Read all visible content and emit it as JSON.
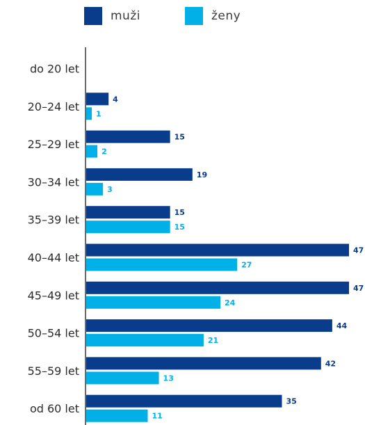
{
  "chart_data": {
    "type": "bar",
    "orientation": "horizontal",
    "categories": [
      "do 20  let",
      "20–24 let",
      "25–29 let",
      "30–34 let",
      "35–39 let",
      "40–44 let",
      "45–49 let",
      "50–54 let",
      "55–59 let",
      "od 60 let"
    ],
    "series": [
      {
        "name": "muži",
        "color": "#0a3c8c",
        "values": [
          0,
          4,
          15,
          19,
          15,
          47,
          47,
          44,
          42,
          35
        ]
      },
      {
        "name": "ženy",
        "color": "#00b0e6",
        "values": [
          0,
          1,
          2,
          3,
          15,
          27,
          24,
          21,
          13,
          11
        ]
      }
    ],
    "xlim": [
      0,
      47
    ],
    "data_labels": true,
    "legend_position": "top",
    "grid": false
  }
}
